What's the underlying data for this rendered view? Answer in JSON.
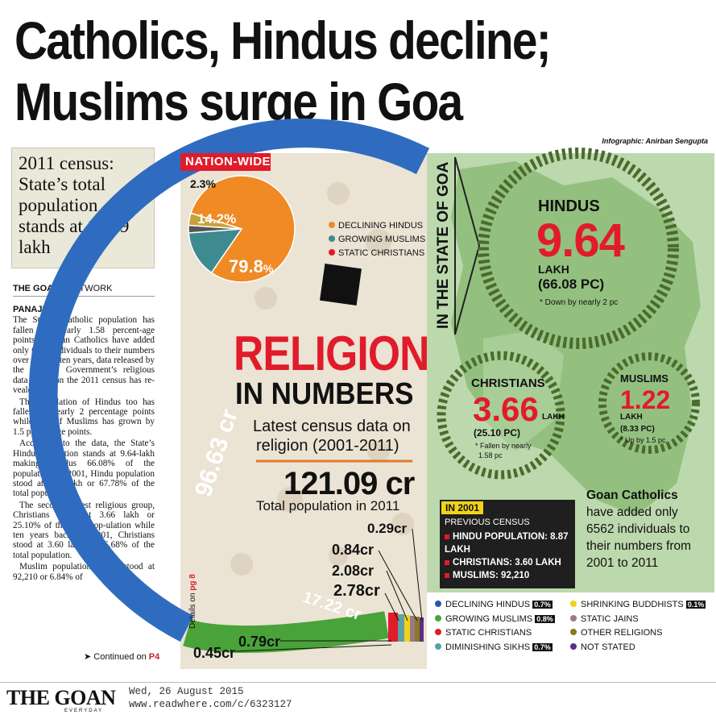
{
  "headline": {
    "line1": "Catholics, Hindus decline;",
    "line2": "Muslims surge in Goa"
  },
  "credit": "Infographic: Anirban Sengupta",
  "sidebox": "2011 census: State’s total population stands at 14.59 lakh",
  "network": {
    "paper": "THE GOAN",
    "bar": "I",
    "label": "NETWORK"
  },
  "article": {
    "dateline": "PANAJI",
    "paragraphs": [
      "The State’s Catholic population has fallen by nearly 1.58 percent-age points as Goan Catholics have added only 6562 individuals to their numbers over the last ten years, data released by the Cen-tral Government’s religious data based on the 2011 census has re-vealed.",
      "The population of Hindus too has fallen by nearly 2 percentage points while that of Muslims has grown by 1.5 percentage points.",
      "According to the data, the State’s Hindu population stands at 9.64-lakh making Hindus 66.08% of the population. In 2001, Hindu population stood at 8.87-lakh or 67.78% of the total population.",
      "The second largest religious group, Christians stand at 3.66 lakh or 25.10% of the total pop-ulation while ten years back, in 2001, Christians stood at 3.60 lakh or 26.68% of the total population.",
      "Muslim population which stood at 92,210 or 6.84% of"
    ],
    "continued": "Continued on",
    "continued_page": "P4"
  },
  "footer": {
    "logo": "THE GOAN",
    "logo_sub": "EVERYDAY",
    "date": "Wed, 26 August 2015",
    "url": "www.readwhere.com/c/6323127"
  },
  "nation": {
    "title": "NATION-WIDE",
    "pie": {
      "hindu": "79.8",
      "muslim": "14.2%",
      "other": "2.3%",
      "pct": "%"
    },
    "legend": [
      "DECLINING HINDUS",
      "GROWING MUSLIMS",
      "STATIC CHRISTIANS"
    ],
    "religion": "RELIGION",
    "in_numbers": "IN NUMBERS",
    "latest": "Latest census data on",
    "religion_years": "religion (2001-2011)",
    "total": "121.09 cr",
    "total_label": "Total population in 2011",
    "ring_hindu": "96.63 cr",
    "ring_muslim": "17.22 cr",
    "values": [
      "0.29cr",
      "0.84cr",
      "2.08cr",
      "2.78cr",
      "0.79cr",
      "0.45cr"
    ],
    "details": "Details on",
    "details_page": "pg 8"
  },
  "chart_data": {
    "type": "pie",
    "title": "NATION-WIDE",
    "categories": [
      "Hindus",
      "Muslims",
      "Others"
    ],
    "values": [
      79.8,
      14.2,
      2.3
    ],
    "colors": [
      "#f08a24",
      "#3e8a91",
      "#555555"
    ]
  },
  "goa": {
    "side_title": "IN THE STATE OF GOA",
    "hindus": {
      "label": "HINDUS",
      "value": "9.64",
      "unit": "LAKH",
      "pc": "(66.08 PC)",
      "note": "* Down by nearly 2 pc"
    },
    "christians": {
      "label": "CHRISTIANS",
      "value": "3.66",
      "unit": "LAKH",
      "pc": "(25.10 PC)",
      "note1": "* Fallen by nearly",
      "note2": "1.58 pc"
    },
    "muslims": {
      "label": "MUSLIMS",
      "value": "1.22",
      "unit": "LAKH",
      "pc": "(8.33 PC)",
      "note": "* Up by 1.5 pc"
    },
    "in2001": {
      "badge": "IN 2001",
      "prev": "PREVIOUS CENSUS",
      "rows": [
        "HINDU POPULATION: 8.87 LAKH",
        "CHRISTIANS: 3.60 LAKH",
        "MUSLIMS: 92,210"
      ]
    },
    "catholics": {
      "bold": "Goan Catholics",
      "rest": "have added only 6562 individuals to their numbers from 2001 to 2011"
    }
  },
  "legend2": {
    "left": [
      {
        "label": "DECLINING HINDUS",
        "badge": "0.7%",
        "color": "#2856a8"
      },
      {
        "label": "GROWING MUSLIMS",
        "badge": "0.8%",
        "color": "#4aa33a"
      },
      {
        "label": "STATIC CHRISTIANS",
        "badge": "",
        "color": "#e11b2a"
      },
      {
        "label": "DIMINISHING SIKHS",
        "badge": "0.7%",
        "color": "#5aa0a8"
      }
    ],
    "right": [
      {
        "label": "SHRINKING BUDDHISTS",
        "badge": "0.1%",
        "color": "#f2d21b"
      },
      {
        "label": "STATIC JAINS",
        "badge": "",
        "color": "#9a7a86"
      },
      {
        "label": "OTHER RELIGIONS",
        "badge": "",
        "color": "#8a7a22"
      },
      {
        "label": "NOT STATED",
        "badge": "",
        "color": "#5e2d86"
      }
    ]
  }
}
